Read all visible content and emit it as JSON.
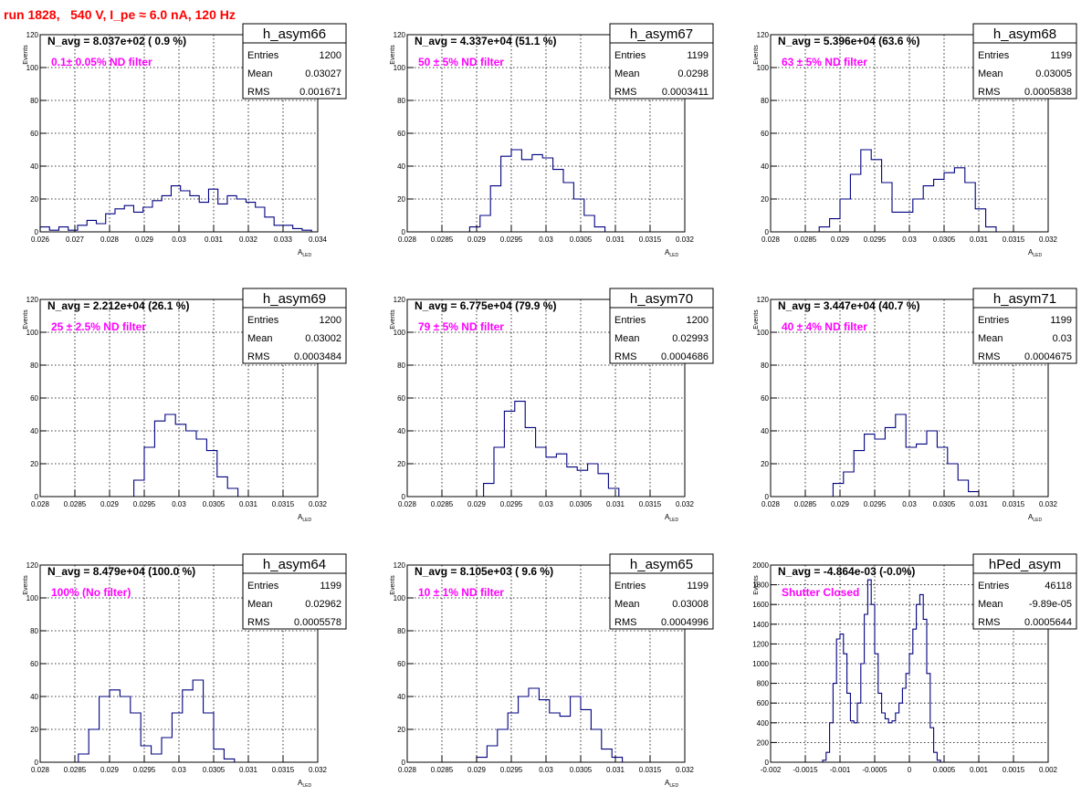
{
  "title": "run 1828,   540 V, I_pe ≈ 6.0 nA, 120 Hz",
  "colors": {
    "title": "#ff0000",
    "annotation": "#ff00ff",
    "histogram": "#000080",
    "grid": "#000000"
  },
  "stats_labels": {
    "entries": "Entries",
    "mean": "Mean",
    "rms": "RMS"
  },
  "chart_data": [
    {
      "type": "bar",
      "name": "h_asym66",
      "title": "N_avg = 8.037e+02 ( 0.9 %)",
      "annotation": "0.1± 0.05% ND filter",
      "entries": "1200",
      "mean": "0.03027",
      "rms": "0.001671",
      "xlabel": "A_LED",
      "ylabel": "Events",
      "xlim": [
        0.0256,
        0.0345
      ],
      "ylim": [
        0,
        120
      ],
      "xticks": [
        "0.026",
        "0.027",
        "0.028",
        "0.029",
        "0.03",
        "0.031",
        "0.032",
        "0.033",
        "0.034"
      ],
      "yticks": [
        "0",
        "20",
        "40",
        "60",
        "80",
        "100",
        "120"
      ],
      "bins": [
        [
          0.0256,
          0.0259,
          3
        ],
        [
          0.0259,
          0.0262,
          1
        ],
        [
          0.0262,
          0.0265,
          3
        ],
        [
          0.0265,
          0.0268,
          1
        ],
        [
          0.0268,
          0.0271,
          4
        ],
        [
          0.0271,
          0.0274,
          7
        ],
        [
          0.0274,
          0.0277,
          5
        ],
        [
          0.0277,
          0.028,
          11
        ],
        [
          0.028,
          0.0283,
          14
        ],
        [
          0.0283,
          0.0286,
          16
        ],
        [
          0.0286,
          0.0289,
          12
        ],
        [
          0.0289,
          0.0292,
          15
        ],
        [
          0.0292,
          0.0295,
          19
        ],
        [
          0.0295,
          0.0298,
          22
        ],
        [
          0.0298,
          0.0301,
          28
        ],
        [
          0.0301,
          0.0304,
          25
        ],
        [
          0.0304,
          0.0307,
          22
        ],
        [
          0.0307,
          0.031,
          18
        ],
        [
          0.031,
          0.0313,
          26
        ],
        [
          0.0313,
          0.0316,
          17
        ],
        [
          0.0316,
          0.0319,
          22
        ],
        [
          0.0319,
          0.0322,
          20
        ],
        [
          0.0322,
          0.0325,
          18
        ],
        [
          0.0325,
          0.0328,
          15
        ],
        [
          0.0328,
          0.0331,
          9
        ],
        [
          0.0331,
          0.0334,
          4
        ],
        [
          0.0334,
          0.0337,
          4
        ],
        [
          0.0337,
          0.034,
          2
        ],
        [
          0.034,
          0.0343,
          1
        ]
      ]
    },
    {
      "type": "bar",
      "name": "h_asym67",
      "title": "N_avg = 4.337e+04 (51.1 %)",
      "annotation": "50 ± 5% ND filter",
      "entries": "1199",
      "mean": "0.0298",
      "rms": "0.0003411",
      "xlabel": "A_LED",
      "ylabel": "Events",
      "xlim": [
        0.028,
        0.032
      ],
      "ylim": [
        0,
        120
      ],
      "xticks": [
        "0.028",
        "0.0285",
        "0.029",
        "0.0295",
        "0.03",
        "0.0305",
        "0.031",
        "0.0315",
        "0.032"
      ],
      "yticks": [
        "0",
        "20",
        "40",
        "60",
        "80",
        "100",
        "120"
      ],
      "bins": [
        [
          0.0289,
          0.02905,
          3
        ],
        [
          0.02905,
          0.0292,
          10
        ],
        [
          0.0292,
          0.02935,
          28
        ],
        [
          0.02935,
          0.0295,
          46
        ],
        [
          0.0295,
          0.02965,
          50
        ],
        [
          0.02965,
          0.0298,
          44
        ],
        [
          0.0298,
          0.02995,
          47
        ],
        [
          0.02995,
          0.0301,
          45
        ],
        [
          0.0301,
          0.03025,
          38
        ],
        [
          0.03025,
          0.0304,
          30
        ],
        [
          0.0304,
          0.03055,
          20
        ],
        [
          0.03055,
          0.0307,
          10
        ],
        [
          0.0307,
          0.03085,
          3
        ]
      ]
    },
    {
      "type": "bar",
      "name": "h_asym68",
      "title": "N_avg = 5.396e+04 (63.6 %)",
      "annotation": "63 ± 5% ND filter",
      "entries": "1199",
      "mean": "0.03005",
      "rms": "0.0005838",
      "xlabel": "A_LED",
      "ylabel": "Events",
      "xlim": [
        0.028,
        0.032
      ],
      "ylim": [
        0,
        120
      ],
      "xticks": [
        "0.028",
        "0.0285",
        "0.029",
        "0.0295",
        "0.03",
        "0.0305",
        "0.031",
        "0.0315",
        "0.032"
      ],
      "yticks": [
        "0",
        "20",
        "40",
        "60",
        "80",
        "100",
        "120"
      ],
      "bins": [
        [
          0.0287,
          0.02885,
          3
        ],
        [
          0.02885,
          0.029,
          8
        ],
        [
          0.029,
          0.02915,
          20
        ],
        [
          0.02915,
          0.0293,
          35
        ],
        [
          0.0293,
          0.02945,
          50
        ],
        [
          0.02945,
          0.0296,
          44
        ],
        [
          0.0296,
          0.02975,
          30
        ],
        [
          0.02975,
          0.0299,
          12
        ],
        [
          0.0299,
          0.03005,
          12
        ],
        [
          0.03005,
          0.0302,
          20
        ],
        [
          0.0302,
          0.03035,
          28
        ],
        [
          0.03035,
          0.0305,
          32
        ],
        [
          0.0305,
          0.03065,
          36
        ],
        [
          0.03065,
          0.0308,
          39
        ],
        [
          0.0308,
          0.03095,
          30
        ],
        [
          0.03095,
          0.0311,
          14
        ],
        [
          0.0311,
          0.03125,
          3
        ]
      ]
    },
    {
      "type": "bar",
      "name": "h_asym69",
      "title": "N_avg = 2.212e+04 (26.1 %)",
      "annotation": "25 ± 2.5% ND filter",
      "entries": "1200",
      "mean": "0.03002",
      "rms": "0.0003484",
      "xlabel": "A_LED",
      "ylabel": "Events",
      "xlim": [
        0.028,
        0.032
      ],
      "ylim": [
        0,
        120
      ],
      "xticks": [
        "0.028",
        "0.0285",
        "0.029",
        "0.0295",
        "0.03",
        "0.0305",
        "0.031",
        "0.0315",
        "0.032"
      ],
      "yticks": [
        "0",
        "20",
        "40",
        "60",
        "80",
        "100",
        "120"
      ],
      "bins": [
        [
          0.02935,
          0.0295,
          10
        ],
        [
          0.0295,
          0.02965,
          30
        ],
        [
          0.02965,
          0.0298,
          46
        ],
        [
          0.0298,
          0.02995,
          50
        ],
        [
          0.02995,
          0.0301,
          44
        ],
        [
          0.0301,
          0.03025,
          40
        ],
        [
          0.03025,
          0.0304,
          35
        ],
        [
          0.0304,
          0.03055,
          28
        ],
        [
          0.03055,
          0.0307,
          12
        ],
        [
          0.0307,
          0.03085,
          5
        ]
      ]
    },
    {
      "type": "bar",
      "name": "h_asym70",
      "title": "N_avg = 6.775e+04 (79.9 %)",
      "annotation": "79 ± 5% ND filter",
      "entries": "1200",
      "mean": "0.02993",
      "rms": "0.0004686",
      "xlabel": "A_LED",
      "ylabel": "Events",
      "xlim": [
        0.028,
        0.032
      ],
      "ylim": [
        0,
        120
      ],
      "xticks": [
        "0.028",
        "0.0285",
        "0.029",
        "0.0295",
        "0.03",
        "0.0305",
        "0.031",
        "0.0315",
        "0.032"
      ],
      "yticks": [
        "0",
        "20",
        "40",
        "60",
        "80",
        "100",
        "120"
      ],
      "bins": [
        [
          0.0291,
          0.02925,
          8
        ],
        [
          0.02925,
          0.0294,
          30
        ],
        [
          0.0294,
          0.02955,
          52
        ],
        [
          0.02955,
          0.0297,
          58
        ],
        [
          0.0297,
          0.02985,
          42
        ],
        [
          0.02985,
          0.03,
          30
        ],
        [
          0.03,
          0.03015,
          24
        ],
        [
          0.03015,
          0.0303,
          26
        ],
        [
          0.0303,
          0.03045,
          18
        ],
        [
          0.03045,
          0.0306,
          16
        ],
        [
          0.0306,
          0.03075,
          20
        ],
        [
          0.03075,
          0.0309,
          14
        ],
        [
          0.0309,
          0.03105,
          5
        ]
      ]
    },
    {
      "type": "bar",
      "name": "h_asym71",
      "title": "N_avg = 3.447e+04 (40.7 %)",
      "annotation": "40 ± 4% ND filter",
      "entries": "1199",
      "mean": "0.03",
      "rms": "0.0004675",
      "xlabel": "A_LED",
      "ylabel": "Events",
      "xlim": [
        0.028,
        0.032
      ],
      "ylim": [
        0,
        120
      ],
      "xticks": [
        "0.028",
        "0.0285",
        "0.029",
        "0.0295",
        "0.03",
        "0.0305",
        "0.031",
        "0.0315",
        "0.032"
      ],
      "yticks": [
        "0",
        "20",
        "40",
        "60",
        "80",
        "100",
        "120"
      ],
      "bins": [
        [
          0.0289,
          0.02905,
          8
        ],
        [
          0.02905,
          0.0292,
          15
        ],
        [
          0.0292,
          0.02935,
          28
        ],
        [
          0.02935,
          0.0295,
          38
        ],
        [
          0.0295,
          0.02965,
          35
        ],
        [
          0.02965,
          0.0298,
          42
        ],
        [
          0.0298,
          0.02995,
          50
        ],
        [
          0.02995,
          0.0301,
          30
        ],
        [
          0.0301,
          0.03025,
          32
        ],
        [
          0.03025,
          0.0304,
          40
        ],
        [
          0.0304,
          0.03055,
          30
        ],
        [
          0.03055,
          0.0307,
          20
        ],
        [
          0.0307,
          0.03085,
          10
        ],
        [
          0.03085,
          0.031,
          3
        ]
      ]
    },
    {
      "type": "bar",
      "name": "h_asym64",
      "title": "N_avg = 8.479e+04 (100.0 %)",
      "annotation": "100% (No filter)",
      "entries": "1199",
      "mean": "0.02962",
      "rms": "0.0005578",
      "xlabel": "A_LED",
      "ylabel": "Events",
      "xlim": [
        0.028,
        0.032
      ],
      "ylim": [
        0,
        120
      ],
      "xticks": [
        "0.028",
        "0.0285",
        "0.029",
        "0.0295",
        "0.03",
        "0.0305",
        "0.031",
        "0.0315",
        "0.032"
      ],
      "yticks": [
        "0",
        "20",
        "40",
        "60",
        "80",
        "100",
        "120"
      ],
      "bins": [
        [
          0.02855,
          0.0287,
          5
        ],
        [
          0.0287,
          0.02885,
          20
        ],
        [
          0.02885,
          0.029,
          40
        ],
        [
          0.029,
          0.02915,
          44
        ],
        [
          0.02915,
          0.0293,
          40
        ],
        [
          0.0293,
          0.02945,
          30
        ],
        [
          0.02945,
          0.0296,
          10
        ],
        [
          0.0296,
          0.02975,
          5
        ],
        [
          0.02975,
          0.0299,
          15
        ],
        [
          0.0299,
          0.03005,
          30
        ],
        [
          0.03005,
          0.0302,
          44
        ],
        [
          0.0302,
          0.03035,
          50
        ],
        [
          0.03035,
          0.0305,
          30
        ],
        [
          0.0305,
          0.03065,
          8
        ],
        [
          0.03065,
          0.0308,
          2
        ]
      ]
    },
    {
      "type": "bar",
      "name": "h_asym65",
      "title": "N_avg = 8.105e+03 ( 9.6 %)",
      "annotation": "10 ± 1% ND filter",
      "entries": "1199",
      "mean": "0.03008",
      "rms": "0.0004996",
      "xlabel": "A_LED",
      "ylabel": "Events",
      "xlim": [
        0.028,
        0.032
      ],
      "ylim": [
        0,
        120
      ],
      "xticks": [
        "0.028",
        "0.0285",
        "0.029",
        "0.0295",
        "0.03",
        "0.0305",
        "0.031",
        "0.0315",
        "0.032"
      ],
      "yticks": [
        "0",
        "20",
        "40",
        "60",
        "80",
        "100",
        "120"
      ],
      "bins": [
        [
          0.029,
          0.02915,
          3
        ],
        [
          0.02915,
          0.0293,
          10
        ],
        [
          0.0293,
          0.02945,
          20
        ],
        [
          0.02945,
          0.0296,
          30
        ],
        [
          0.0296,
          0.02975,
          40
        ],
        [
          0.02975,
          0.0299,
          45
        ],
        [
          0.0299,
          0.03005,
          38
        ],
        [
          0.03005,
          0.0302,
          30
        ],
        [
          0.0302,
          0.03035,
          28
        ],
        [
          0.03035,
          0.0305,
          40
        ],
        [
          0.0305,
          0.03065,
          32
        ],
        [
          0.03065,
          0.0308,
          20
        ],
        [
          0.0308,
          0.03095,
          8
        ],
        [
          0.03095,
          0.0311,
          3
        ]
      ]
    },
    {
      "type": "bar",
      "name": "hPed_asym",
      "title": "N_avg = -4.864e-03 (-0.0%)",
      "annotation": "Shutter Closed",
      "entries": "46118",
      "mean": "-9.89e-05",
      "rms": "0.0005644",
      "xlabel": "",
      "ylabel": "Events",
      "xlim": [
        -0.002,
        0.002
      ],
      "ylim": [
        0,
        2000
      ],
      "xticks": [
        "-0.002",
        "-0.0015",
        "-0.001",
        "-0.0005",
        "0",
        "0.0005",
        "0.001",
        "0.0015",
        "0.002"
      ],
      "yticks": [
        "0",
        "200",
        "400",
        "600",
        "800",
        "1000",
        "1200",
        "1400",
        "1600",
        "1800",
        "2000"
      ],
      "bins": [
        [
          -0.00125,
          -0.0012,
          20
        ],
        [
          -0.0012,
          -0.00115,
          100
        ],
        [
          -0.00115,
          -0.0011,
          400
        ],
        [
          -0.0011,
          -0.00105,
          800
        ],
        [
          -0.00105,
          -0.001,
          1250
        ],
        [
          -0.001,
          -0.00095,
          1300
        ],
        [
          -0.00095,
          -0.0009,
          1100
        ],
        [
          -0.0009,
          -0.00085,
          700
        ],
        [
          -0.00085,
          -0.0008,
          420
        ],
        [
          -0.0008,
          -0.00075,
          400
        ],
        [
          -0.00075,
          -0.0007,
          600
        ],
        [
          -0.0007,
          -0.00065,
          1000
        ],
        [
          -0.00065,
          -0.0006,
          1500
        ],
        [
          -0.0006,
          -0.00055,
          1850
        ],
        [
          -0.00055,
          -0.0005,
          1600
        ],
        [
          -0.0005,
          -0.00045,
          1100
        ],
        [
          -0.00045,
          -0.0004,
          700
        ],
        [
          -0.0004,
          -0.00035,
          500
        ],
        [
          -0.00035,
          -0.0003,
          440
        ],
        [
          -0.0003,
          -0.00025,
          400
        ],
        [
          -0.00025,
          -0.0002,
          420
        ],
        [
          -0.0002,
          -0.00015,
          500
        ],
        [
          -0.00015,
          -0.0001,
          600
        ],
        [
          -0.0001,
          -5e-05,
          750
        ],
        [
          -5e-05,
          0.0,
          900
        ],
        [
          0.0,
          5e-05,
          1100
        ],
        [
          5e-05,
          0.0001,
          1350
        ],
        [
          0.0001,
          0.00015,
          1600
        ],
        [
          0.00015,
          0.0002,
          1700
        ],
        [
          0.0002,
          0.00025,
          1450
        ],
        [
          0.00025,
          0.0003,
          900
        ],
        [
          0.0003,
          0.00035,
          350
        ],
        [
          0.00035,
          0.0004,
          100
        ],
        [
          0.0004,
          0.00045,
          20
        ]
      ]
    }
  ]
}
